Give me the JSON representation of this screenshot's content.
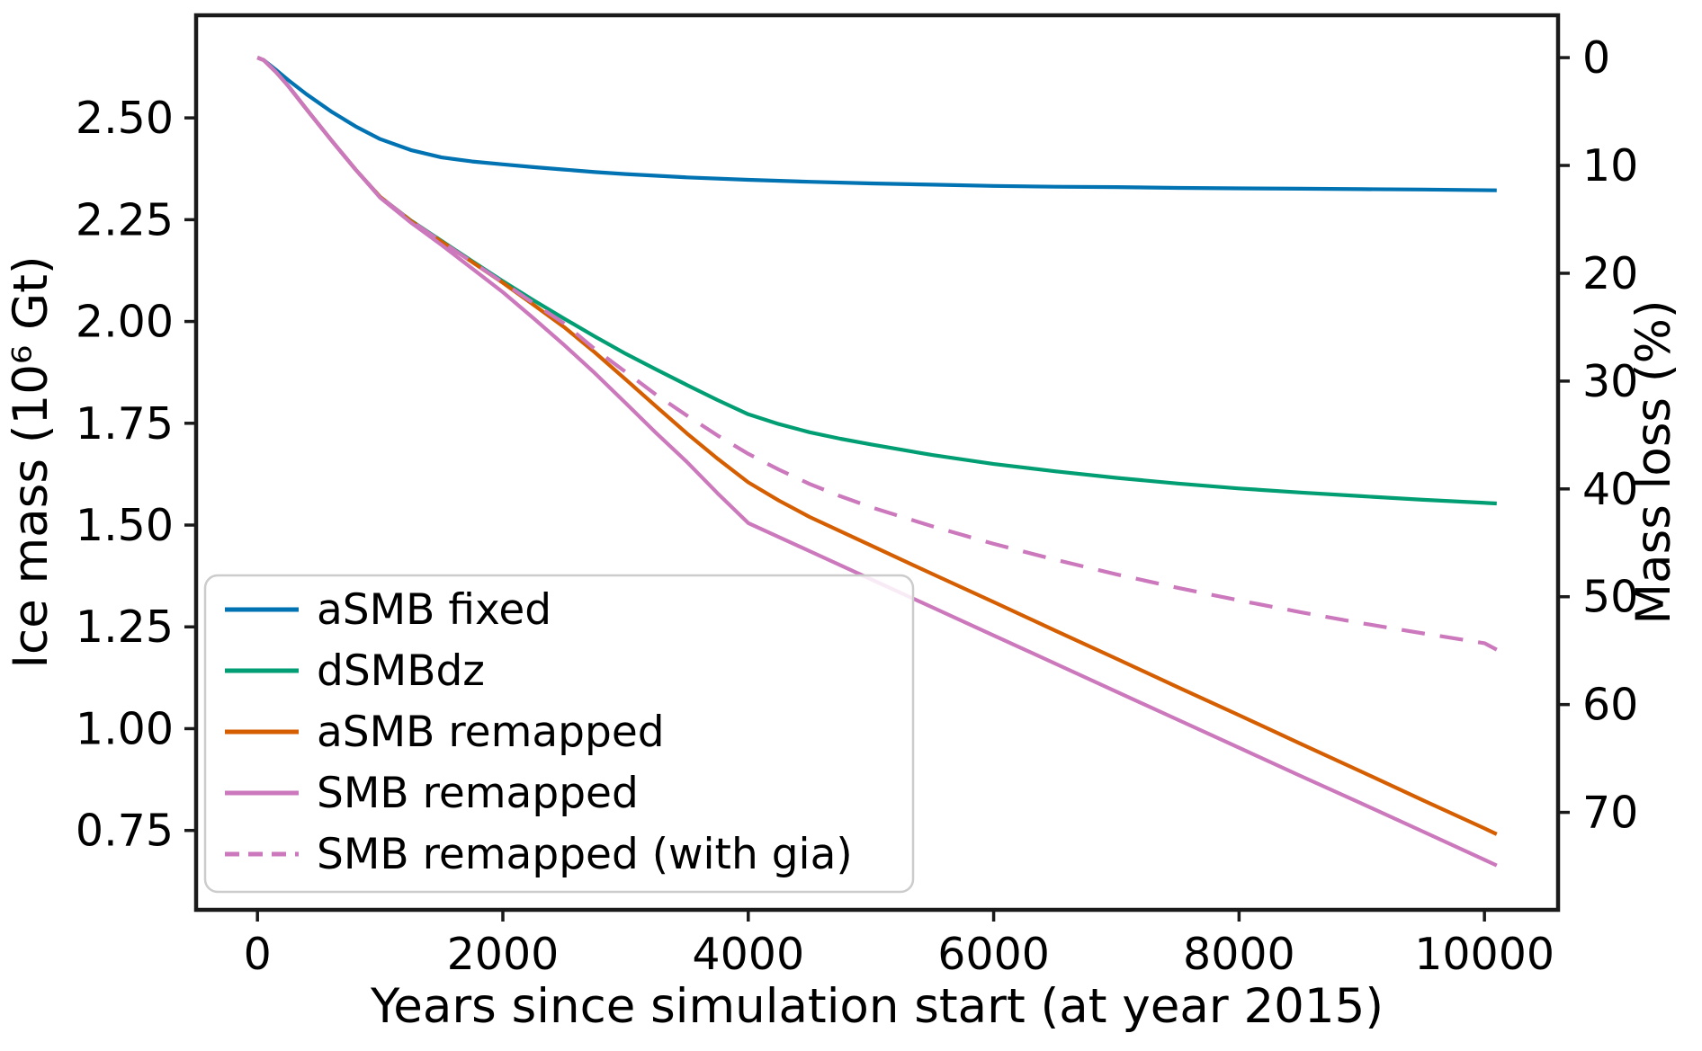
{
  "chart_data": {
    "type": "line",
    "title": "",
    "xlabel": "Years since simulation start (at year 2015)",
    "ylabel_left": "Ice mass (10⁶ Gt)",
    "ylabel_right": "Mass loss (%)",
    "xlim": [
      -500,
      10600
    ],
    "ylim_left": [
      0.555,
      2.752
    ],
    "initial_mass_for_percent_axis": 2.648,
    "x_ticks": [
      0,
      2000,
      4000,
      6000,
      8000,
      10000
    ],
    "y_ticks_left": [
      2.5,
      2.25,
      2.0,
      1.75,
      1.5,
      1.25,
      1.0,
      0.75
    ],
    "y_ticks_right": [
      0,
      10,
      20,
      30,
      40,
      50,
      60,
      70
    ],
    "grid": false,
    "legend_position": "lower left",
    "axis_color": "#1a1a1a",
    "legend_border_color": "#cccccc",
    "series": [
      {
        "name": "aSMB fixed",
        "color": "#0173b2",
        "style": "solid",
        "points": [
          [
            0,
            2.648
          ],
          [
            50,
            2.642
          ],
          [
            150,
            2.618
          ],
          [
            250,
            2.593
          ],
          [
            400,
            2.558
          ],
          [
            600,
            2.516
          ],
          [
            800,
            2.479
          ],
          [
            1000,
            2.448
          ],
          [
            1250,
            2.421
          ],
          [
            1500,
            2.403
          ],
          [
            1750,
            2.393
          ],
          [
            2000,
            2.386
          ],
          [
            2250,
            2.379
          ],
          [
            2500,
            2.373
          ],
          [
            2750,
            2.367
          ],
          [
            3000,
            2.362
          ],
          [
            3500,
            2.354
          ],
          [
            4000,
            2.348
          ],
          [
            4500,
            2.343
          ],
          [
            5000,
            2.339
          ],
          [
            5500,
            2.336
          ],
          [
            6000,
            2.333
          ],
          [
            6500,
            2.331
          ],
          [
            7000,
            2.33
          ],
          [
            7500,
            2.328
          ],
          [
            8000,
            2.327
          ],
          [
            8500,
            2.326
          ],
          [
            9000,
            2.325
          ],
          [
            9500,
            2.324
          ],
          [
            10100,
            2.322
          ]
        ]
      },
      {
        "name": "dSMBdz",
        "color": "#029e73",
        "style": "solid",
        "points": [
          [
            0,
            2.648
          ],
          [
            50,
            2.642
          ],
          [
            150,
            2.613
          ],
          [
            250,
            2.579
          ],
          [
            400,
            2.521
          ],
          [
            600,
            2.446
          ],
          [
            800,
            2.373
          ],
          [
            1000,
            2.306
          ],
          [
            1250,
            2.248
          ],
          [
            1500,
            2.198
          ],
          [
            1750,
            2.148
          ],
          [
            2000,
            2.099
          ],
          [
            2250,
            2.052
          ],
          [
            2500,
            2.007
          ],
          [
            2750,
            1.963
          ],
          [
            3000,
            1.921
          ],
          [
            3250,
            1.882
          ],
          [
            3500,
            1.844
          ],
          [
            3750,
            1.807
          ],
          [
            4000,
            1.772
          ],
          [
            4250,
            1.748
          ],
          [
            4500,
            1.728
          ],
          [
            4750,
            1.712
          ],
          [
            5000,
            1.698
          ],
          [
            5500,
            1.672
          ],
          [
            6000,
            1.65
          ],
          [
            6500,
            1.632
          ],
          [
            7000,
            1.616
          ],
          [
            7500,
            1.602
          ],
          [
            8000,
            1.59
          ],
          [
            8500,
            1.58
          ],
          [
            9000,
            1.571
          ],
          [
            9500,
            1.562
          ],
          [
            10100,
            1.553
          ]
        ]
      },
      {
        "name": "aSMB remapped",
        "color": "#d55e00",
        "style": "solid",
        "points": [
          [
            0,
            2.648
          ],
          [
            50,
            2.642
          ],
          [
            150,
            2.613
          ],
          [
            250,
            2.579
          ],
          [
            400,
            2.521
          ],
          [
            600,
            2.446
          ],
          [
            800,
            2.373
          ],
          [
            1000,
            2.306
          ],
          [
            1250,
            2.247
          ],
          [
            1500,
            2.196
          ],
          [
            1750,
            2.146
          ],
          [
            2000,
            2.095
          ],
          [
            2250,
            2.041
          ],
          [
            2500,
            1.986
          ],
          [
            2750,
            1.924
          ],
          [
            3000,
            1.858
          ],
          [
            3250,
            1.791
          ],
          [
            3500,
            1.725
          ],
          [
            3750,
            1.663
          ],
          [
            4000,
            1.605
          ],
          [
            4250,
            1.56
          ],
          [
            4500,
            1.52
          ],
          [
            5000,
            1.45
          ],
          [
            5500,
            1.38
          ],
          [
            6000,
            1.311
          ],
          [
            6500,
            1.241
          ],
          [
            7000,
            1.172
          ],
          [
            7500,
            1.102
          ],
          [
            8000,
            1.033
          ],
          [
            8500,
            0.963
          ],
          [
            9000,
            0.894
          ],
          [
            9500,
            0.824
          ],
          [
            10000,
            0.755
          ],
          [
            10100,
            0.741
          ]
        ]
      },
      {
        "name": "SMB remapped",
        "color": "#cc78bc",
        "style": "solid",
        "points": [
          [
            0,
            2.648
          ],
          [
            50,
            2.642
          ],
          [
            150,
            2.613
          ],
          [
            250,
            2.579
          ],
          [
            400,
            2.521
          ],
          [
            600,
            2.446
          ],
          [
            800,
            2.373
          ],
          [
            1000,
            2.304
          ],
          [
            1250,
            2.243
          ],
          [
            1500,
            2.188
          ],
          [
            1750,
            2.13
          ],
          [
            2000,
            2.072
          ],
          [
            2250,
            2.008
          ],
          [
            2500,
            1.942
          ],
          [
            2750,
            1.873
          ],
          [
            3000,
            1.8
          ],
          [
            3250,
            1.726
          ],
          [
            3500,
            1.655
          ],
          [
            3750,
            1.578
          ],
          [
            4000,
            1.505
          ],
          [
            4500,
            1.436
          ],
          [
            5000,
            1.367
          ],
          [
            5500,
            1.298
          ],
          [
            6000,
            1.229
          ],
          [
            6500,
            1.16
          ],
          [
            7000,
            1.091
          ],
          [
            7500,
            1.022
          ],
          [
            8000,
            0.953
          ],
          [
            8500,
            0.884
          ],
          [
            9000,
            0.816
          ],
          [
            9500,
            0.747
          ],
          [
            10000,
            0.678
          ],
          [
            10100,
            0.664
          ]
        ]
      },
      {
        "name": "SMB remapped (with gia)",
        "color": "#cc78bc",
        "style": "dashed",
        "points": [
          [
            0,
            2.648
          ],
          [
            50,
            2.642
          ],
          [
            150,
            2.613
          ],
          [
            250,
            2.579
          ],
          [
            400,
            2.521
          ],
          [
            600,
            2.446
          ],
          [
            800,
            2.373
          ],
          [
            1000,
            2.306
          ],
          [
            1250,
            2.247
          ],
          [
            1500,
            2.196
          ],
          [
            1750,
            2.146
          ],
          [
            2000,
            2.096
          ],
          [
            2250,
            2.045
          ],
          [
            2500,
            1.995
          ],
          [
            2750,
            1.932
          ],
          [
            3000,
            1.876
          ],
          [
            3250,
            1.82
          ],
          [
            3500,
            1.769
          ],
          [
            3750,
            1.72
          ],
          [
            4000,
            1.675
          ],
          [
            4250,
            1.636
          ],
          [
            4500,
            1.601
          ],
          [
            4750,
            1.571
          ],
          [
            5000,
            1.544
          ],
          [
            5500,
            1.497
          ],
          [
            6000,
            1.454
          ],
          [
            6500,
            1.415
          ],
          [
            7000,
            1.379
          ],
          [
            7500,
            1.346
          ],
          [
            8000,
            1.315
          ],
          [
            8500,
            1.286
          ],
          [
            9000,
            1.259
          ],
          [
            9500,
            1.234
          ],
          [
            10000,
            1.21
          ],
          [
            10100,
            1.194
          ]
        ]
      }
    ]
  }
}
